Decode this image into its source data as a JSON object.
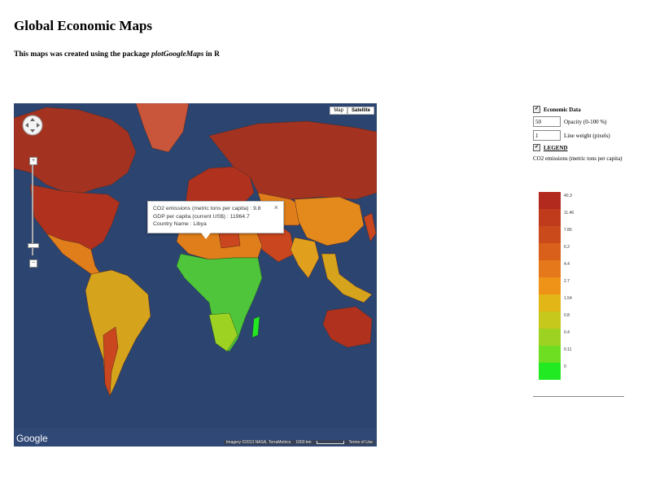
{
  "page": {
    "title": "Global Economic Maps",
    "subtitle_prefix": "This maps was created using the package ",
    "subtitle_package": "plotGoogleMaps",
    "subtitle_suffix": " in R"
  },
  "map": {
    "map_type_buttons": [
      "Map",
      "Satellite"
    ],
    "active_map_type": "Satellite",
    "zoom_in_label": "+",
    "zoom_out_label": "−",
    "infowindow": {
      "lines": [
        "CO2 emissions (metric tons per capita) : 9.8",
        "GDP per capita (current US$) : 11964.7",
        "Country Name : Libya"
      ],
      "close_label": "×"
    },
    "google_logo": "Google",
    "attribution": "Imagery ©2013 NASA, TerraMetrics",
    "scale_label": "1000 km",
    "terms_label": "Terms of Use",
    "colors": {
      "ocean": "#2b4470",
      "red": "#b0321e",
      "orange_red": "#c9461e",
      "orange": "#df7e1a",
      "yellow_orange": "#d5a31c",
      "green": "#4ec53a",
      "bright_green": "#22e822"
    }
  },
  "panel": {
    "economic_data_label": "Economic Data",
    "economic_data_checked": true,
    "opacity_value": "50",
    "opacity_label": "Opacity (0-100 %)",
    "line_weight_value": "1",
    "line_weight_label": "Line weight (pixels)",
    "legend_label": "LEGEND",
    "legend_checked": true,
    "legend_caption": "CO2 emissions (metric tons per capita)",
    "legend_items": [
      {
        "label": "40.3",
        "color": "#b22a1d"
      },
      {
        "label": "11.46",
        "color": "#c03a1c"
      },
      {
        "label": "7.86",
        "color": "#ca4a1c"
      },
      {
        "label": "6.2",
        "color": "#d8601b"
      },
      {
        "label": "4.4",
        "color": "#e4781a"
      },
      {
        "label": "2.7",
        "color": "#ee9218"
      },
      {
        "label": "1.54",
        "color": "#e3b618"
      },
      {
        "label": "0.8",
        "color": "#c6c81c"
      },
      {
        "label": "0.4",
        "color": "#9ed222"
      },
      {
        "label": "0.11",
        "color": "#6ede22"
      },
      {
        "label": "0",
        "color": "#22ea22"
      }
    ]
  }
}
